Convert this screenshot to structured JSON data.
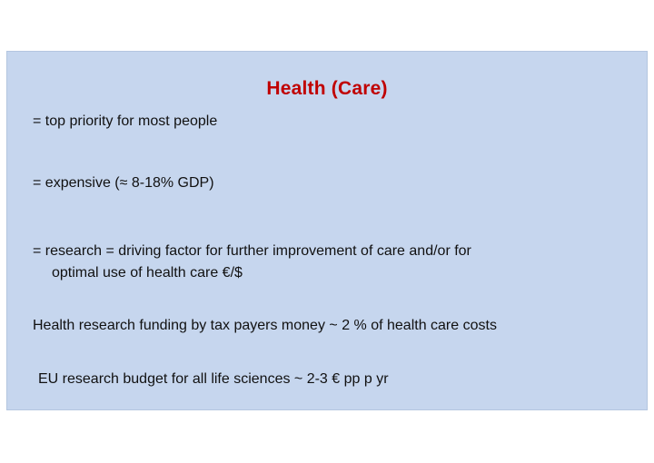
{
  "slide": {
    "title": "Health (Care)",
    "lines": [
      "= top priority for most people",
      "= expensive (≈ 8-18% GDP)",
      "= research = driving factor for further improvement of care  and/or for",
      "optimal use of health care €/$",
      "Health research  funding by tax payers money ~ 2 % of health care costs",
      "EU research budget for  all life sciences ~ 2-3 € pp p yr"
    ]
  },
  "colors": {
    "panel_background": "#c6d6ee",
    "title": "#c00000",
    "text": "#111111"
  }
}
